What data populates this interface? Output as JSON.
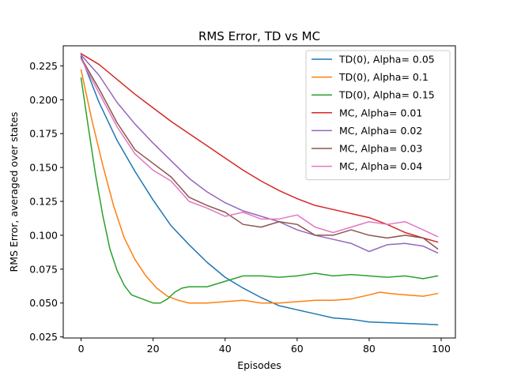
{
  "chart_data": {
    "type": "line",
    "title": "RMS Error, TD vs MC",
    "xlabel": "Episodes",
    "ylabel": "RMS Error, averaged over states",
    "xlim": [
      -4.95,
      103.95
    ],
    "ylim": [
      0.0242,
      0.2398
    ],
    "xticks": [
      0,
      20,
      40,
      60,
      80,
      100
    ],
    "yticks": [
      0.025,
      0.05,
      0.075,
      0.1,
      0.125,
      0.15,
      0.175,
      0.2,
      0.225
    ],
    "ytick_labels": [
      "0.025",
      "0.050",
      "0.075",
      "0.100",
      "0.125",
      "0.150",
      "0.175",
      "0.200",
      "0.225"
    ],
    "grid": false,
    "legend_position": "upper right",
    "series": [
      {
        "name": "TD(0), Alpha= 0.05",
        "color": "#1f77b4",
        "points": [
          [
            0,
            0.232
          ],
          [
            5,
            0.198
          ],
          [
            10,
            0.17
          ],
          [
            15,
            0.147
          ],
          [
            20,
            0.126
          ],
          [
            25,
            0.107
          ],
          [
            30,
            0.093
          ],
          [
            35,
            0.08
          ],
          [
            40,
            0.069
          ],
          [
            45,
            0.061
          ],
          [
            50,
            0.054
          ],
          [
            55,
            0.048
          ],
          [
            60,
            0.045
          ],
          [
            65,
            0.042
          ],
          [
            70,
            0.039
          ],
          [
            75,
            0.038
          ],
          [
            80,
            0.036
          ],
          [
            85,
            0.0355
          ],
          [
            90,
            0.035
          ],
          [
            95,
            0.0345
          ],
          [
            99,
            0.034
          ]
        ]
      },
      {
        "name": "TD(0), Alpha= 0.1",
        "color": "#ff7f0e",
        "points": [
          [
            0,
            0.222
          ],
          [
            3,
            0.185
          ],
          [
            6,
            0.152
          ],
          [
            9,
            0.122
          ],
          [
            12,
            0.098
          ],
          [
            15,
            0.082
          ],
          [
            18,
            0.07
          ],
          [
            21,
            0.061
          ],
          [
            24,
            0.055
          ],
          [
            27,
            0.052
          ],
          [
            30,
            0.05
          ],
          [
            35,
            0.05
          ],
          [
            40,
            0.051
          ],
          [
            45,
            0.052
          ],
          [
            50,
            0.05
          ],
          [
            55,
            0.05
          ],
          [
            60,
            0.051
          ],
          [
            65,
            0.052
          ],
          [
            70,
            0.052
          ],
          [
            75,
            0.053
          ],
          [
            80,
            0.056
          ],
          [
            83,
            0.058
          ],
          [
            86,
            0.057
          ],
          [
            90,
            0.056
          ],
          [
            95,
            0.055
          ],
          [
            99,
            0.057
          ]
        ]
      },
      {
        "name": "TD(0), Alpha= 0.15",
        "color": "#2ca02c",
        "points": [
          [
            0,
            0.216
          ],
          [
            2,
            0.18
          ],
          [
            4,
            0.145
          ],
          [
            6,
            0.115
          ],
          [
            8,
            0.09
          ],
          [
            10,
            0.074
          ],
          [
            12,
            0.063
          ],
          [
            14,
            0.056
          ],
          [
            16,
            0.054
          ],
          [
            18,
            0.052
          ],
          [
            20,
            0.05
          ],
          [
            22,
            0.05
          ],
          [
            24,
            0.053
          ],
          [
            26,
            0.058
          ],
          [
            28,
            0.061
          ],
          [
            30,
            0.062
          ],
          [
            35,
            0.062
          ],
          [
            40,
            0.066
          ],
          [
            45,
            0.07
          ],
          [
            50,
            0.07
          ],
          [
            55,
            0.069
          ],
          [
            60,
            0.07
          ],
          [
            65,
            0.072
          ],
          [
            70,
            0.07
          ],
          [
            75,
            0.071
          ],
          [
            80,
            0.07
          ],
          [
            85,
            0.069
          ],
          [
            90,
            0.07
          ],
          [
            95,
            0.068
          ],
          [
            99,
            0.07
          ]
        ]
      },
      {
        "name": "MC, Alpha= 0.01",
        "color": "#d62728",
        "points": [
          [
            0,
            0.234
          ],
          [
            5,
            0.226
          ],
          [
            10,
            0.215
          ],
          [
            15,
            0.204
          ],
          [
            20,
            0.194
          ],
          [
            25,
            0.184
          ],
          [
            30,
            0.175
          ],
          [
            35,
            0.166
          ],
          [
            40,
            0.157
          ],
          [
            45,
            0.148
          ],
          [
            50,
            0.14
          ],
          [
            55,
            0.133
          ],
          [
            60,
            0.127
          ],
          [
            65,
            0.122
          ],
          [
            70,
            0.119
          ],
          [
            75,
            0.116
          ],
          [
            80,
            0.113
          ],
          [
            85,
            0.108
          ],
          [
            90,
            0.102
          ],
          [
            95,
            0.098
          ],
          [
            99,
            0.095
          ]
        ]
      },
      {
        "name": "MC, Alpha= 0.02",
        "color": "#9467bd",
        "points": [
          [
            0,
            0.233
          ],
          [
            5,
            0.218
          ],
          [
            10,
            0.198
          ],
          [
            15,
            0.182
          ],
          [
            20,
            0.168
          ],
          [
            25,
            0.155
          ],
          [
            30,
            0.142
          ],
          [
            35,
            0.132
          ],
          [
            40,
            0.124
          ],
          [
            45,
            0.118
          ],
          [
            50,
            0.114
          ],
          [
            55,
            0.11
          ],
          [
            60,
            0.104
          ],
          [
            65,
            0.1
          ],
          [
            70,
            0.097
          ],
          [
            75,
            0.094
          ],
          [
            80,
            0.088
          ],
          [
            85,
            0.093
          ],
          [
            90,
            0.094
          ],
          [
            95,
            0.092
          ],
          [
            99,
            0.087
          ]
        ]
      },
      {
        "name": "MC, Alpha= 0.03",
        "color": "#8c564b",
        "points": [
          [
            0,
            0.231
          ],
          [
            5,
            0.208
          ],
          [
            10,
            0.183
          ],
          [
            15,
            0.163
          ],
          [
            20,
            0.153
          ],
          [
            25,
            0.143
          ],
          [
            30,
            0.128
          ],
          [
            35,
            0.122
          ],
          [
            40,
            0.117
          ],
          [
            45,
            0.108
          ],
          [
            50,
            0.106
          ],
          [
            55,
            0.11
          ],
          [
            60,
            0.108
          ],
          [
            65,
            0.1
          ],
          [
            70,
            0.1
          ],
          [
            75,
            0.104
          ],
          [
            80,
            0.1
          ],
          [
            85,
            0.098
          ],
          [
            90,
            0.1
          ],
          [
            95,
            0.098
          ],
          [
            99,
            0.09
          ]
        ]
      },
      {
        "name": "MC, Alpha= 0.04",
        "color": "#e377c2",
        "points": [
          [
            0,
            0.23
          ],
          [
            5,
            0.205
          ],
          [
            10,
            0.18
          ],
          [
            15,
            0.16
          ],
          [
            20,
            0.148
          ],
          [
            25,
            0.14
          ],
          [
            30,
            0.125
          ],
          [
            35,
            0.12
          ],
          [
            40,
            0.114
          ],
          [
            45,
            0.117
          ],
          [
            50,
            0.112
          ],
          [
            55,
            0.112
          ],
          [
            60,
            0.115
          ],
          [
            65,
            0.106
          ],
          [
            70,
            0.102
          ],
          [
            75,
            0.106
          ],
          [
            80,
            0.11
          ],
          [
            85,
            0.108
          ],
          [
            90,
            0.11
          ],
          [
            95,
            0.104
          ],
          [
            99,
            0.099
          ]
        ]
      }
    ]
  }
}
